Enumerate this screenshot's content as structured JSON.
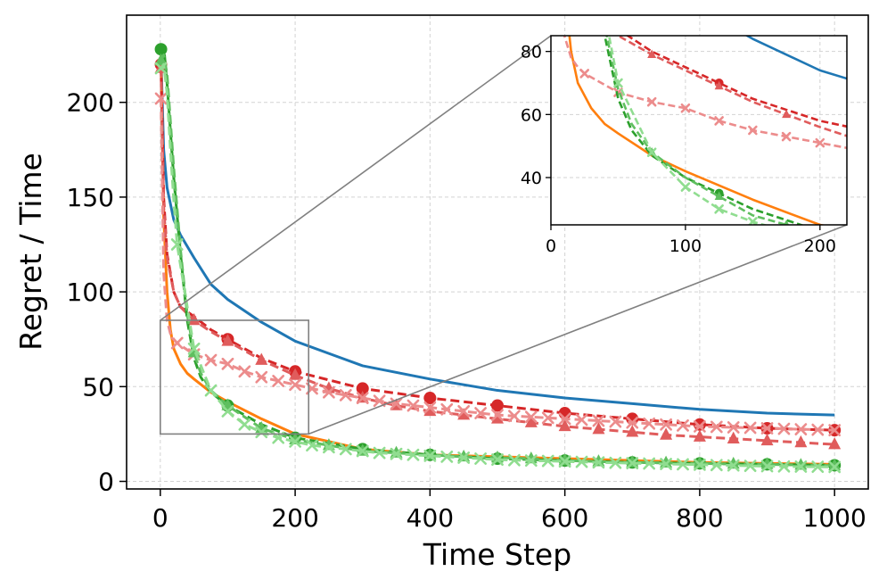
{
  "chart_data": {
    "type": "line",
    "title": "",
    "xlabel": "Time Step",
    "ylabel": "Regret / Time",
    "xlim": [
      -50,
      1050
    ],
    "ylim": [
      -4,
      246
    ],
    "xticks": [
      0,
      200,
      400,
      600,
      800,
      1000
    ],
    "yticks": [
      0,
      50,
      100,
      150,
      200
    ],
    "grid": true,
    "legend": "none",
    "series": [
      {
        "color": "#1f77b4",
        "dash": "solid",
        "marker": "none",
        "x": [
          1,
          5,
          10,
          20,
          30,
          50,
          75,
          100,
          150,
          200,
          300,
          400,
          500,
          600,
          700,
          800,
          900,
          1000
        ],
        "y": [
          225,
          175,
          155,
          138,
          130,
          118,
          104,
          96,
          84,
          74,
          61,
          54,
          48,
          44,
          41,
          38,
          36,
          35
        ]
      },
      {
        "color": "#ff7f0e",
        "dash": "solid",
        "marker": "none",
        "x": [
          1,
          5,
          10,
          15,
          20,
          30,
          40,
          50,
          75,
          100,
          150,
          200,
          300,
          400,
          500,
          600,
          700,
          800,
          900,
          1000
        ],
        "y": [
          225,
          140,
          100,
          80,
          70,
          62,
          57,
          54,
          47,
          42,
          33,
          25,
          17,
          14,
          13,
          12,
          11,
          10,
          9.5,
          9
        ]
      },
      {
        "color": "#d62728",
        "dash": "dashed",
        "marker": "circle",
        "marker_every": 100,
        "x": [
          1,
          5,
          10,
          20,
          30,
          50,
          75,
          100,
          150,
          200,
          300,
          400,
          500,
          600,
          700,
          800,
          900,
          1000
        ],
        "y": [
          220,
          150,
          120,
          100,
          92,
          87,
          80,
          75,
          65,
          58,
          49,
          44,
          40,
          36,
          33,
          30,
          28,
          27
        ]
      },
      {
        "color": "#e05c5c",
        "dash": "dashed",
        "marker": "triangle",
        "marker_every": 50,
        "x": [
          1,
          5,
          10,
          20,
          30,
          50,
          75,
          100,
          150,
          200,
          250,
          300,
          350,
          400,
          450,
          500,
          550,
          600,
          650,
          700,
          750,
          800,
          850,
          900,
          950,
          1000
        ],
        "y": [
          218,
          145,
          118,
          100,
          92,
          85,
          79,
          74,
          64,
          56,
          49,
          44,
          40,
          37,
          35,
          33,
          31,
          29,
          27.5,
          26,
          24.5,
          23.5,
          22.5,
          21.5,
          20.5,
          19.5
        ]
      },
      {
        "color": "#ec8c8c",
        "dash": "dashed",
        "marker": "x",
        "marker_every": 25,
        "x": [
          1,
          5,
          10,
          15,
          20,
          25,
          50,
          75,
          100,
          125,
          150,
          175,
          200,
          250,
          300,
          350,
          400,
          450,
          500,
          550,
          600,
          650,
          700,
          750,
          800,
          850,
          900,
          950,
          1000
        ],
        "y": [
          202,
          110,
          85,
          78,
          75,
          73,
          67,
          64,
          62,
          58,
          55,
          53,
          51,
          47,
          44,
          41,
          39,
          37,
          35,
          34,
          33,
          32,
          31,
          30,
          29,
          28.5,
          28,
          27.5,
          27
        ]
      },
      {
        "color": "#2ca02c",
        "dash": "dashed",
        "marker": "circle",
        "marker_every": 100,
        "x": [
          1,
          5,
          10,
          15,
          20,
          30,
          40,
          50,
          60,
          75,
          100,
          150,
          200,
          300,
          400,
          500,
          600,
          700,
          800,
          900,
          1000
        ],
        "y": [
          228,
          230,
          210,
          185,
          160,
          120,
          85,
          65,
          55,
          47,
          40,
          30,
          23,
          17,
          14,
          12,
          11,
          10,
          9.5,
          9,
          8.5
        ]
      },
      {
        "color": "#5fbf5f",
        "dash": "dashed",
        "marker": "triangle",
        "marker_every": 50,
        "x": [
          1,
          5,
          10,
          15,
          20,
          30,
          40,
          50,
          60,
          75,
          100,
          150,
          200,
          250,
          300,
          350,
          400,
          450,
          500,
          550,
          600,
          650,
          700,
          750,
          800,
          850,
          900,
          950,
          1000
        ],
        "y": [
          222,
          225,
          215,
          190,
          165,
          122,
          88,
          68,
          57,
          48,
          40,
          28,
          22,
          19,
          16,
          15,
          14,
          13,
          12.5,
          12,
          11,
          10.5,
          10,
          9.8,
          9.5,
          9.2,
          9,
          8.6,
          8.3
        ]
      },
      {
        "color": "#90dd90",
        "dash": "dashed",
        "marker": "x",
        "marker_every": 25,
        "x": [
          1,
          5,
          10,
          15,
          20,
          25,
          50,
          75,
          100,
          125,
          150,
          175,
          200,
          225,
          250,
          275,
          300,
          325,
          350,
          375,
          400,
          425,
          450,
          475,
          500,
          525,
          550,
          575,
          600,
          625,
          650,
          675,
          700,
          725,
          750,
          775,
          800,
          825,
          850,
          875,
          900,
          925,
          950,
          975,
          1000
        ],
        "y": [
          218,
          220,
          205,
          175,
          148,
          125,
          70,
          48,
          37,
          30,
          26,
          23,
          21,
          19,
          18,
          17,
          16,
          15,
          14.5,
          14,
          13.5,
          13,
          12.5,
          12,
          11.5,
          11.2,
          11,
          10.8,
          10.5,
          10.3,
          10,
          9.8,
          9.6,
          9.4,
          9.2,
          9,
          8.8,
          8.6,
          8.4,
          8.2,
          8,
          7.9,
          7.8,
          7.7,
          7.6
        ]
      }
    ],
    "inset": {
      "xlim": [
        0,
        220
      ],
      "ylim": [
        25,
        85
      ],
      "xticks": [
        0,
        100,
        200
      ],
      "yticks": [
        40,
        60,
        80
      ]
    }
  }
}
